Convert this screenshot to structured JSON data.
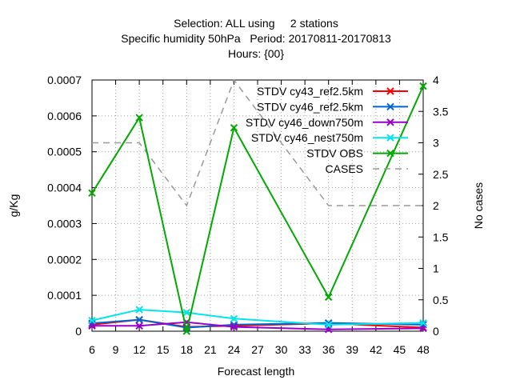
{
  "chart_data": {
    "type": "line",
    "title": [
      "Selection: ALL using     2 stations",
      "Specific humidity 50hPa   Period: 20170811-20170813",
      "Hours: {00}"
    ],
    "xlabel": "Forecast length",
    "ylabel": "g/Kg",
    "y2label": "No cases",
    "xlim": [
      6,
      48
    ],
    "ylim": [
      0,
      0.0007
    ],
    "y2lim": [
      0,
      4
    ],
    "x_ticks": [
      6,
      9,
      12,
      15,
      18,
      21,
      24,
      27,
      30,
      33,
      36,
      39,
      42,
      45,
      48
    ],
    "y_ticks": [
      0,
      0.0001,
      0.0002,
      0.0003,
      0.0004,
      0.0005,
      0.0006,
      0.0007
    ],
    "y_tick_labels": [
      "0",
      "0.0001",
      "0.0002",
      "0.0003",
      "0.0004",
      "0.0005",
      "0.0006",
      "0.0007"
    ],
    "y2_ticks": [
      0,
      0.5,
      1,
      1.5,
      2,
      2.5,
      3,
      3.5,
      4
    ],
    "y2_tick_labels": [
      "0",
      "0.5",
      "1",
      "1.5",
      "2",
      "2.5",
      "3",
      "3.5",
      "4"
    ],
    "grid": true,
    "legend_position": "top-right",
    "x": [
      6,
      12,
      18,
      24,
      36,
      48
    ],
    "series": [
      {
        "name": "STDV cy43_ref2.5km",
        "color": "#ff0000",
        "marker": "x",
        "axis": "y1",
        "values": [
          1.8e-05,
          3.2e-05,
          1.2e-05,
          1.5e-05,
          2.2e-05,
          1e-05
        ]
      },
      {
        "name": "STDV cy46_ref2.5km",
        "color": "#0066cc",
        "marker": "x",
        "axis": "y1",
        "values": [
          2.2e-05,
          3.2e-05,
          1e-05,
          1.8e-05,
          2.3e-05,
          1.8e-05
        ]
      },
      {
        "name": "STDV cy46_down750m",
        "color": "#9900cc",
        "marker": "x",
        "axis": "y1",
        "values": [
          1.5e-05,
          1.5e-05,
          2.5e-05,
          1.2e-05,
          5e-06,
          8e-06
        ]
      },
      {
        "name": "STDV cy46_nest750m",
        "color": "#00e5ee",
        "marker": "x",
        "axis": "y1",
        "values": [
          3e-05,
          6e-05,
          5.2e-05,
          3.5e-05,
          1.8e-05,
          2.3e-05
        ]
      },
      {
        "name": "STDV OBS",
        "color": "#00aa00",
        "marker": "x",
        "axis": "y1",
        "values": [
          0.000385,
          0.000595,
          0.0,
          0.000567,
          9.5e-05,
          0.000683
        ]
      },
      {
        "name": "CASES",
        "color": "#999999",
        "marker": "none",
        "dashed": true,
        "axis": "y2",
        "values": [
          3,
          3,
          2,
          4,
          2,
          2
        ]
      }
    ]
  }
}
